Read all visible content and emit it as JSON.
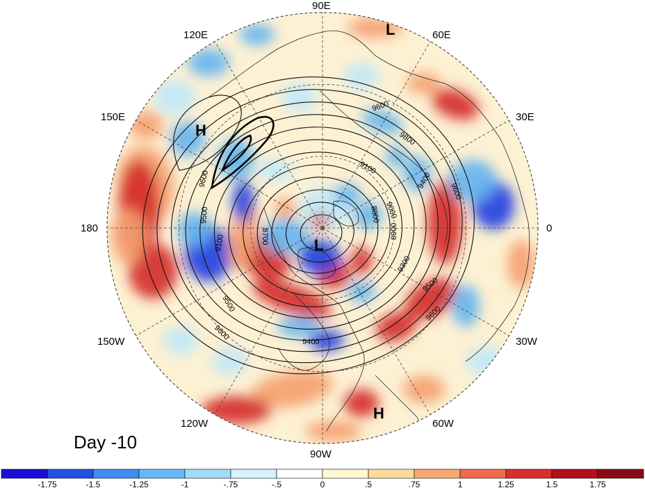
{
  "panel_label": "Day -10",
  "longitude_labels": [
    {
      "id": "90e",
      "text": "90E"
    },
    {
      "id": "60e",
      "text": "60E"
    },
    {
      "id": "120e",
      "text": "120E"
    },
    {
      "id": "30e",
      "text": "30E"
    },
    {
      "id": "150e",
      "text": "150E"
    },
    {
      "id": "180",
      "text": "180"
    },
    {
      "id": "0",
      "text": "0"
    },
    {
      "id": "150w",
      "text": "150W"
    },
    {
      "id": "30w",
      "text": "30W"
    },
    {
      "id": "120w",
      "text": "120W"
    },
    {
      "id": "60w",
      "text": "60W"
    },
    {
      "id": "90w",
      "text": "90W"
    }
  ],
  "pressure_centers": [
    {
      "id": "L-top",
      "text": "L"
    },
    {
      "id": "H-left",
      "text": "H"
    },
    {
      "id": "L-pole",
      "text": "L"
    },
    {
      "id": "H-bottom",
      "text": "H"
    }
  ],
  "contour_labels": [
    "9600",
    "9800",
    "9100",
    "9400",
    "9600",
    "9600",
    "9500",
    "9100",
    "8800",
    "8900",
    "9000",
    "9300",
    "9500",
    "9600",
    "9400",
    "9500",
    "9600",
    "8700"
  ],
  "colorbar": {
    "ticks": [
      "-1.75",
      "-1.5",
      "-1.25",
      "-1",
      "-.75",
      "-.5",
      "0",
      ".5",
      ".75",
      "1",
      "1.25",
      "1.5",
      "1.75"
    ],
    "colors": [
      "#1a0fd8",
      "#2550e6",
      "#3f8df0",
      "#66b8f4",
      "#9fdcf8",
      "#d4f3fb",
      "#ffffff",
      "#fef8d2",
      "#fbdc9c",
      "#f7a86f",
      "#ef6b4d",
      "#db2e2c",
      "#b30f1e",
      "#8a0a14"
    ]
  },
  "colors": {
    "strong_positive": "#d42a28",
    "positive": "#f4a070",
    "weak_positive": "#fbe3b0",
    "weak_negative": "#bfe8f8",
    "negative": "#62b4f0",
    "strong_negative": "#1f3fe0"
  }
}
